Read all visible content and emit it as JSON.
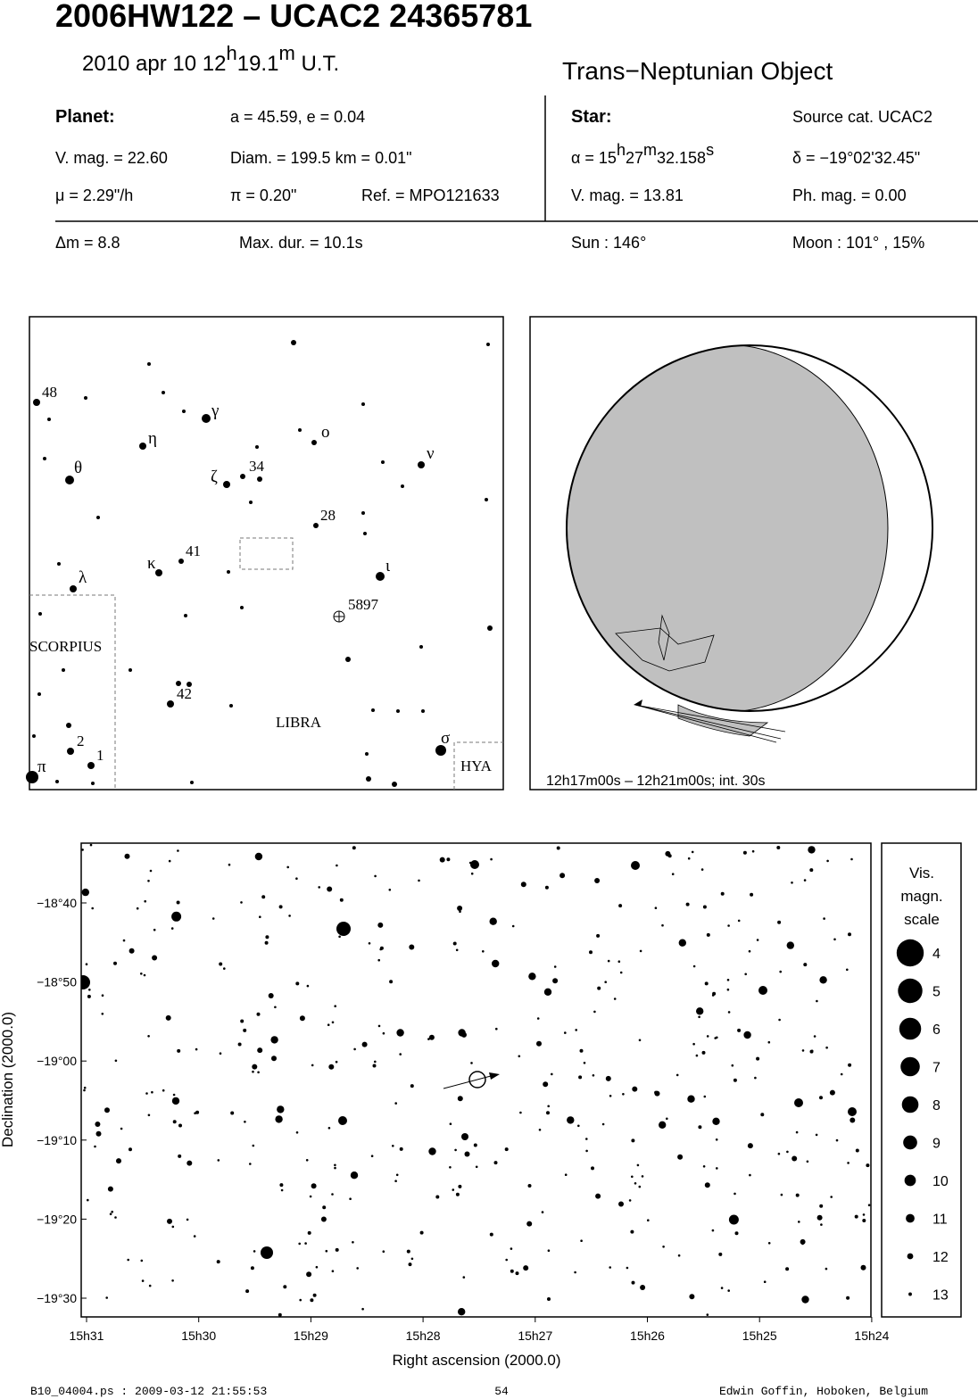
{
  "header": {
    "title": "2006HW122  –  UCAC2 24365781",
    "date_parts": [
      "2010 apr 10  12",
      "h",
      "19.1",
      "m",
      " U.T."
    ],
    "object_type": "Trans−Neptunian Object"
  },
  "planet": {
    "heading": "Planet:",
    "orbit": "a = 45.59, e = 0.04",
    "vmag": "V. mag. = 22.60",
    "diam": "Diam. = 199.5 km = 0.01\"",
    "motion": "μ =  2.29\"/h",
    "parallax": "π =  0.20\"",
    "ref": "Ref. = MPO121633"
  },
  "star": {
    "heading": "Star:",
    "source": "Source cat.  UCAC2",
    "ra_parts": [
      "α = 15",
      "h",
      "27",
      "m",
      "32.158",
      "s"
    ],
    "dec": "δ = −19°02'32.45\"",
    "vmag": "V. mag. = 13.81",
    "phmag": "Ph. mag. =  0.00"
  },
  "event": {
    "delta_mag": "Δm = 8.8",
    "max_duration": "Max. dur. = 10.1s",
    "sun": "Sun : 146°",
    "moon": "Moon : 101° , 15%"
  },
  "finder_chart": {
    "labels": [
      "48",
      "γ",
      "η",
      "ο",
      "ν",
      "θ",
      "ζ",
      "34",
      "28",
      "κ",
      "41",
      "ι",
      "λ",
      "5897",
      "SCORPIUS",
      "42",
      "LIBRA",
      "2",
      "σ",
      "1",
      "π",
      "HYA"
    ]
  },
  "globe": {
    "caption": "12h17m00s – 12h21m00s; int. 30s"
  },
  "star_chart": {
    "y_axis_label": "Declination (2000.0)",
    "x_axis_label": "Right ascension (2000.0)",
    "yticks": [
      "−18°40",
      "−18°50",
      "−19°00",
      "−19°10",
      "−19°20",
      "−19°30"
    ],
    "xticks": [
      "15h31",
      "15h30",
      "15h29",
      "15h28",
      "15h27",
      "15h26",
      "15h25",
      "15h24"
    ]
  },
  "magnitude_scale": {
    "title": [
      "Vis.",
      "magn.",
      "scale"
    ],
    "magnitudes": [
      4,
      5,
      6,
      7,
      8,
      9,
      10,
      11,
      12,
      13
    ]
  },
  "footer": {
    "left": "B10_04004.ps : 2009-03-12 21:55:53",
    "page": "54",
    "right": "Edwin Goffin, Hoboken, Belgium"
  }
}
